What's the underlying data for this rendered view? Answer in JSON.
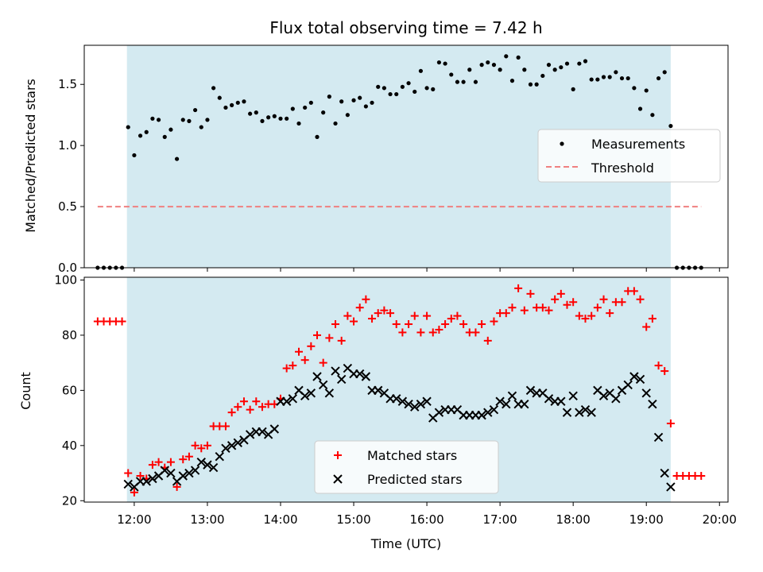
{
  "chart_data": [
    {
      "type": "scatter",
      "title": "Flux total observing time = 7.42 h",
      "ylabel": "Matched/Predicted stars",
      "xlabel": "",
      "xlim": [
        "11:19",
        "20:07"
      ],
      "ylim": [
        0,
        1.82
      ],
      "yticks": [
        "0.0",
        "0.5",
        "1.0",
        "1.5"
      ],
      "shaded_span": [
        "11:54",
        "19:20"
      ],
      "legend": {
        "position": "center-right",
        "entries": [
          "Measurements",
          "Threshold"
        ]
      },
      "colors": {
        "shade": "#d4eaf1",
        "measurements": "#000000",
        "threshold": "#f08080"
      },
      "series": [
        {
          "name": "Measurements",
          "x": [
            "11:30",
            "11:35",
            "11:40",
            "11:45",
            "11:50",
            "11:55",
            "12:00",
            "12:05",
            "12:10",
            "12:15",
            "12:20",
            "12:25",
            "12:30",
            "12:35",
            "12:40",
            "12:45",
            "12:50",
            "12:55",
            "13:00",
            "13:05",
            "13:10",
            "13:15",
            "13:20",
            "13:25",
            "13:30",
            "13:35",
            "13:40",
            "13:45",
            "13:50",
            "13:55",
            "14:00",
            "14:05",
            "14:10",
            "14:15",
            "14:20",
            "14:25",
            "14:30",
            "14:35",
            "14:40",
            "14:45",
            "14:50",
            "14:55",
            "15:00",
            "15:05",
            "15:10",
            "15:15",
            "15:20",
            "15:25",
            "15:30",
            "15:35",
            "15:40",
            "15:45",
            "15:50",
            "15:55",
            "16:00",
            "16:05",
            "16:10",
            "16:15",
            "16:20",
            "16:25",
            "16:30",
            "16:35",
            "16:40",
            "16:45",
            "16:50",
            "16:55",
            "17:00",
            "17:05",
            "17:10",
            "17:15",
            "17:20",
            "17:25",
            "17:30",
            "17:35",
            "17:40",
            "17:45",
            "17:50",
            "17:55",
            "18:00",
            "18:05",
            "18:10",
            "18:15",
            "18:20",
            "18:25",
            "18:30",
            "18:35",
            "18:40",
            "18:45",
            "18:50",
            "18:55",
            "19:00",
            "19:05",
            "19:10",
            "19:15",
            "19:20",
            "19:25",
            "19:30",
            "19:35",
            "19:40",
            "19:45"
          ],
          "values": [
            0,
            0,
            0,
            0,
            0,
            1.15,
            0.92,
            1.08,
            1.11,
            1.22,
            1.21,
            1.07,
            1.13,
            0.89,
            1.21,
            1.2,
            1.29,
            1.15,
            1.21,
            1.47,
            1.39,
            1.31,
            1.33,
            1.35,
            1.36,
            1.26,
            1.27,
            1.2,
            1.23,
            1.24,
            1.22,
            1.22,
            1.3,
            1.18,
            1.31,
            1.35,
            1.07,
            1.27,
            1.4,
            1.18,
            1.36,
            1.25,
            1.37,
            1.39,
            1.32,
            1.35,
            1.48,
            1.47,
            1.42,
            1.42,
            1.48,
            1.51,
            1.44,
            1.61,
            1.47,
            1.46,
            1.68,
            1.67,
            1.58,
            1.52,
            1.52,
            1.62,
            1.52,
            1.66,
            1.68,
            1.66,
            1.62,
            1.73,
            1.53,
            1.72,
            1.62,
            1.5,
            1.5,
            1.57,
            1.66,
            1.62,
            1.64,
            1.67,
            1.46,
            1.67,
            1.69,
            1.54,
            1.54,
            1.56,
            1.56,
            1.6,
            1.55,
            1.55,
            1.47,
            1.3,
            1.45,
            1.25,
            1.55,
            1.6,
            1.16,
            0,
            0,
            0,
            0,
            0
          ]
        },
        {
          "name": "Threshold",
          "x": [
            "11:30",
            "19:45"
          ],
          "values": [
            0.5,
            0.5
          ]
        }
      ]
    },
    {
      "type": "scatter",
      "title": "",
      "ylabel": "Count",
      "xlabel": "Time (UTC)",
      "xlim": [
        "11:19",
        "20:07"
      ],
      "ylim": [
        19.5,
        101
      ],
      "yticks": [
        "20",
        "40",
        "60",
        "80",
        "100"
      ],
      "xticks": [
        "12:00",
        "13:00",
        "14:00",
        "15:00",
        "16:00",
        "17:00",
        "18:00",
        "19:00",
        "20:00"
      ],
      "shaded_span": [
        "11:54",
        "19:20"
      ],
      "legend": {
        "position": "lower-center",
        "entries": [
          "Matched stars",
          "Predicted stars"
        ]
      },
      "colors": {
        "matched": "#ff0000",
        "predicted": "#000000"
      },
      "series": [
        {
          "name": "Matched stars",
          "x": [
            "11:30",
            "11:35",
            "11:40",
            "11:45",
            "11:50",
            "11:55",
            "12:00",
            "12:05",
            "12:10",
            "12:15",
            "12:20",
            "12:25",
            "12:30",
            "12:35",
            "12:40",
            "12:45",
            "12:50",
            "12:55",
            "13:00",
            "13:05",
            "13:10",
            "13:15",
            "13:20",
            "13:25",
            "13:30",
            "13:35",
            "13:40",
            "13:45",
            "13:50",
            "13:55",
            "14:00",
            "14:05",
            "14:10",
            "14:15",
            "14:20",
            "14:25",
            "14:30",
            "14:35",
            "14:40",
            "14:45",
            "14:50",
            "14:55",
            "15:00",
            "15:05",
            "15:10",
            "15:15",
            "15:20",
            "15:25",
            "15:30",
            "15:35",
            "15:40",
            "15:45",
            "15:50",
            "15:55",
            "16:00",
            "16:05",
            "16:10",
            "16:15",
            "16:20",
            "16:25",
            "16:30",
            "16:35",
            "16:40",
            "16:45",
            "16:50",
            "16:55",
            "17:00",
            "17:05",
            "17:10",
            "17:15",
            "17:20",
            "17:25",
            "17:30",
            "17:35",
            "17:40",
            "17:45",
            "17:50",
            "17:55",
            "18:00",
            "18:05",
            "18:10",
            "18:15",
            "18:20",
            "18:25",
            "18:30",
            "18:35",
            "18:40",
            "18:45",
            "18:50",
            "18:55",
            "19:00",
            "19:05",
            "19:10",
            "19:15",
            "19:20",
            "19:25",
            "19:30",
            "19:35",
            "19:40",
            "19:45"
          ],
          "values": [
            85,
            85,
            85,
            85,
            85,
            30,
            23,
            29,
            28,
            33,
            34,
            32,
            34,
            25,
            35,
            36,
            40,
            39,
            40,
            47,
            47,
            47,
            52,
            54,
            56,
            53,
            56,
            54,
            55,
            55,
            57,
            68,
            69,
            74,
            71,
            76,
            80,
            70,
            79,
            84,
            78,
            87,
            85,
            90,
            93,
            86,
            88,
            89,
            88,
            84,
            81,
            84,
            87,
            81,
            87,
            81,
            82,
            84,
            86,
            87,
            84,
            81,
            81,
            84,
            78,
            85,
            88,
            88,
            90,
            97,
            89,
            95,
            90,
            90,
            89,
            93,
            95,
            91,
            92,
            87,
            86,
            87,
            90,
            93,
            88,
            92,
            92,
            96,
            96,
            93,
            83,
            86,
            69,
            67,
            48,
            29,
            29,
            29,
            29,
            29
          ]
        },
        {
          "name": "Predicted stars",
          "x": [
            "11:55",
            "12:00",
            "12:05",
            "12:10",
            "12:15",
            "12:20",
            "12:25",
            "12:30",
            "12:35",
            "12:40",
            "12:45",
            "12:50",
            "12:55",
            "13:00",
            "13:05",
            "13:10",
            "13:15",
            "13:20",
            "13:25",
            "13:30",
            "13:35",
            "13:40",
            "13:45",
            "13:50",
            "13:55",
            "14:00",
            "14:05",
            "14:10",
            "14:15",
            "14:20",
            "14:25",
            "14:30",
            "14:35",
            "14:40",
            "14:45",
            "14:50",
            "14:55",
            "15:00",
            "15:05",
            "15:10",
            "15:15",
            "15:20",
            "15:25",
            "15:30",
            "15:35",
            "15:40",
            "15:45",
            "15:50",
            "15:55",
            "16:00",
            "16:05",
            "16:10",
            "16:15",
            "16:20",
            "16:25",
            "16:30",
            "16:35",
            "16:40",
            "16:45",
            "16:50",
            "16:55",
            "17:00",
            "17:05",
            "17:10",
            "17:15",
            "17:20",
            "17:25",
            "17:30",
            "17:35",
            "17:40",
            "17:45",
            "17:50",
            "17:55",
            "18:00",
            "18:05",
            "18:10",
            "18:15",
            "18:20",
            "18:25",
            "18:30",
            "18:35",
            "18:40",
            "18:45",
            "18:50",
            "18:55",
            "19:00",
            "19:05",
            "19:10",
            "19:15",
            "19:20"
          ],
          "values": [
            26,
            25,
            27,
            27,
            28,
            29,
            31,
            30,
            27,
            29,
            30,
            31,
            34,
            33,
            32,
            36,
            39,
            40,
            41,
            42,
            44,
            45,
            45,
            44,
            46,
            56,
            56,
            57,
            60,
            58,
            59,
            65,
            62,
            59,
            67,
            64,
            68,
            66,
            66,
            65,
            60,
            60,
            59,
            57,
            57,
            56,
            55,
            54,
            55,
            56,
            50,
            52,
            53,
            53,
            53,
            51,
            51,
            51,
            51,
            52,
            53,
            56,
            55,
            58,
            55,
            55,
            60,
            59,
            59,
            57,
            56,
            56,
            52,
            58,
            52,
            53,
            52,
            60,
            58,
            59,
            57,
            60,
            62,
            65,
            64,
            59,
            55,
            43,
            30,
            25
          ]
        }
      ]
    }
  ]
}
